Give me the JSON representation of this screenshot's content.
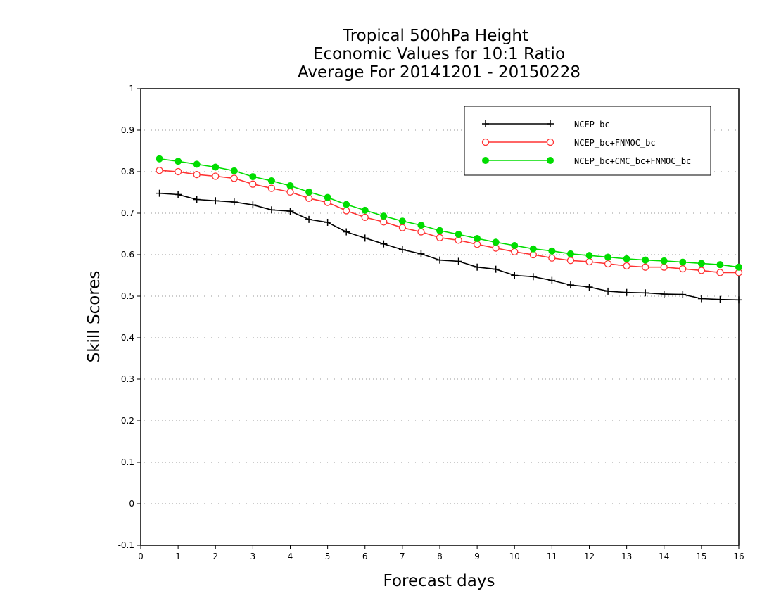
{
  "chart_data": {
    "type": "line",
    "title": [
      "Tropical 500hPa Height",
      "Economic Values for 10:1 Ratio",
      "Average For 20141201 - 20150228"
    ],
    "xlabel": "Forecast days",
    "ylabel": "Skill Scores",
    "xlim": [
      0,
      16
    ],
    "ylim": [
      -0.1,
      1
    ],
    "xticks": [
      "0",
      "1",
      "2",
      "3",
      "4",
      "5",
      "6",
      "7",
      "8",
      "9",
      "10",
      "11",
      "12",
      "13",
      "14",
      "15",
      "16"
    ],
    "yticks": [
      "-0.1",
      "0",
      "0.1",
      "0.2",
      "0.3",
      "0.4",
      "0.5",
      "0.6",
      "0.7",
      "0.8",
      "0.9",
      "1"
    ],
    "grid": "horizontal dotted",
    "legend_position": "top-right",
    "x": [
      0.5,
      1,
      1.5,
      2,
      2.5,
      3,
      3.5,
      4,
      4.5,
      5,
      5.5,
      6,
      6.5,
      7,
      7.5,
      8,
      8.5,
      9,
      9.5,
      10,
      10.5,
      11,
      11.5,
      12,
      12.5,
      13,
      13.5,
      14,
      14.5,
      15,
      15.5,
      16
    ],
    "series": [
      {
        "name": "NCEP_bc",
        "color": "#000000",
        "marker": "plus",
        "values": [
          0.748,
          0.745,
          0.733,
          0.73,
          0.727,
          0.72,
          0.708,
          0.705,
          0.685,
          0.678,
          0.655,
          0.64,
          0.626,
          0.612,
          0.602,
          0.587,
          0.584,
          0.57,
          0.565,
          0.55,
          0.547,
          0.538,
          0.527,
          0.522,
          0.512,
          0.509,
          0.508,
          0.505,
          0.504,
          0.494,
          0.492,
          0.491
        ]
      },
      {
        "name": "NCEP_bc+FNMOC_bc",
        "color": "#ff3333",
        "marker": "open-circle",
        "values": [
          0.803,
          0.8,
          0.793,
          0.789,
          0.784,
          0.77,
          0.76,
          0.751,
          0.736,
          0.726,
          0.706,
          0.69,
          0.679,
          0.665,
          0.655,
          0.641,
          0.635,
          0.625,
          0.616,
          0.607,
          0.6,
          0.592,
          0.586,
          0.583,
          0.578,
          0.573,
          0.57,
          0.57,
          0.566,
          0.562,
          0.557,
          0.557
        ]
      },
      {
        "name": "NCEP_bc+CMC_bc+FNMOC_bc",
        "color": "#00dd00",
        "marker": "filled-circle",
        "values": [
          0.831,
          0.825,
          0.818,
          0.811,
          0.802,
          0.788,
          0.778,
          0.766,
          0.751,
          0.738,
          0.721,
          0.707,
          0.693,
          0.681,
          0.671,
          0.658,
          0.649,
          0.639,
          0.63,
          0.622,
          0.614,
          0.609,
          0.602,
          0.598,
          0.594,
          0.59,
          0.587,
          0.585,
          0.582,
          0.579,
          0.576,
          0.57
        ]
      }
    ]
  }
}
